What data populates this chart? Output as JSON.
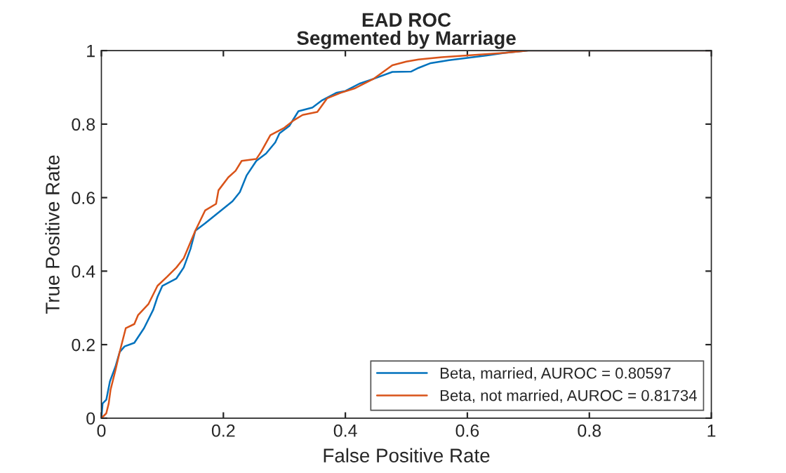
{
  "chart_data": {
    "type": "line",
    "title": "EAD ROC",
    "subtitle": "Segmented by Marriage",
    "xlabel": "False Positive Rate",
    "ylabel": "True Positive Rate",
    "xlim": [
      0,
      1
    ],
    "ylim": [
      0,
      1
    ],
    "xticks": [
      0,
      0.2,
      0.4,
      0.6,
      0.8,
      1
    ],
    "yticks": [
      0,
      0.2,
      0.4,
      0.6,
      0.8,
      1
    ],
    "grid": false,
    "legend": "bottom right",
    "series": [
      {
        "name": "Beta, married, AUROC = 0.80597",
        "color": "#0072bd",
        "x": [
          0,
          0.002,
          0.008,
          0.014,
          0.023,
          0.03,
          0.038,
          0.054,
          0.07,
          0.085,
          0.092,
          0.1,
          0.123,
          0.135,
          0.146,
          0.154,
          0.17,
          0.185,
          0.2,
          0.215,
          0.227,
          0.238,
          0.254,
          0.27,
          0.285,
          0.292,
          0.308,
          0.323,
          0.346,
          0.362,
          0.385,
          0.4,
          0.423,
          0.446,
          0.477,
          0.508,
          0.52,
          0.54,
          0.57,
          0.6,
          0.632,
          0.662,
          0.7,
          1
        ],
        "values": [
          0,
          0.04,
          0.05,
          0.1,
          0.14,
          0.18,
          0.195,
          0.205,
          0.245,
          0.295,
          0.33,
          0.36,
          0.38,
          0.41,
          0.46,
          0.51,
          0.53,
          0.55,
          0.57,
          0.59,
          0.615,
          0.66,
          0.7,
          0.72,
          0.75,
          0.775,
          0.795,
          0.835,
          0.845,
          0.865,
          0.885,
          0.89,
          0.91,
          0.923,
          0.942,
          0.943,
          0.953,
          0.966,
          0.974,
          0.98,
          0.987,
          0.994,
          1,
          1
        ]
      },
      {
        "name": "Beta, not married, AUROC = 0.81734",
        "color": "#d95319",
        "x": [
          0,
          0.008,
          0.012,
          0.015,
          0.023,
          0.03,
          0.04,
          0.054,
          0.06,
          0.077,
          0.092,
          0.108,
          0.123,
          0.135,
          0.154,
          0.17,
          0.188,
          0.192,
          0.208,
          0.22,
          0.23,
          0.254,
          0.262,
          0.277,
          0.3,
          0.315,
          0.33,
          0.354,
          0.37,
          0.392,
          0.415,
          0.446,
          0.477,
          0.5,
          0.52,
          0.558,
          0.6,
          0.662,
          0.7,
          1
        ],
        "values": [
          0,
          0.013,
          0.04,
          0.077,
          0.13,
          0.18,
          0.245,
          0.256,
          0.28,
          0.31,
          0.36,
          0.385,
          0.41,
          0.435,
          0.51,
          0.565,
          0.583,
          0.62,
          0.655,
          0.673,
          0.7,
          0.705,
          0.725,
          0.77,
          0.79,
          0.81,
          0.825,
          0.833,
          0.87,
          0.885,
          0.897,
          0.923,
          0.96,
          0.97,
          0.976,
          0.982,
          0.987,
          0.994,
          1,
          1
        ]
      }
    ]
  }
}
